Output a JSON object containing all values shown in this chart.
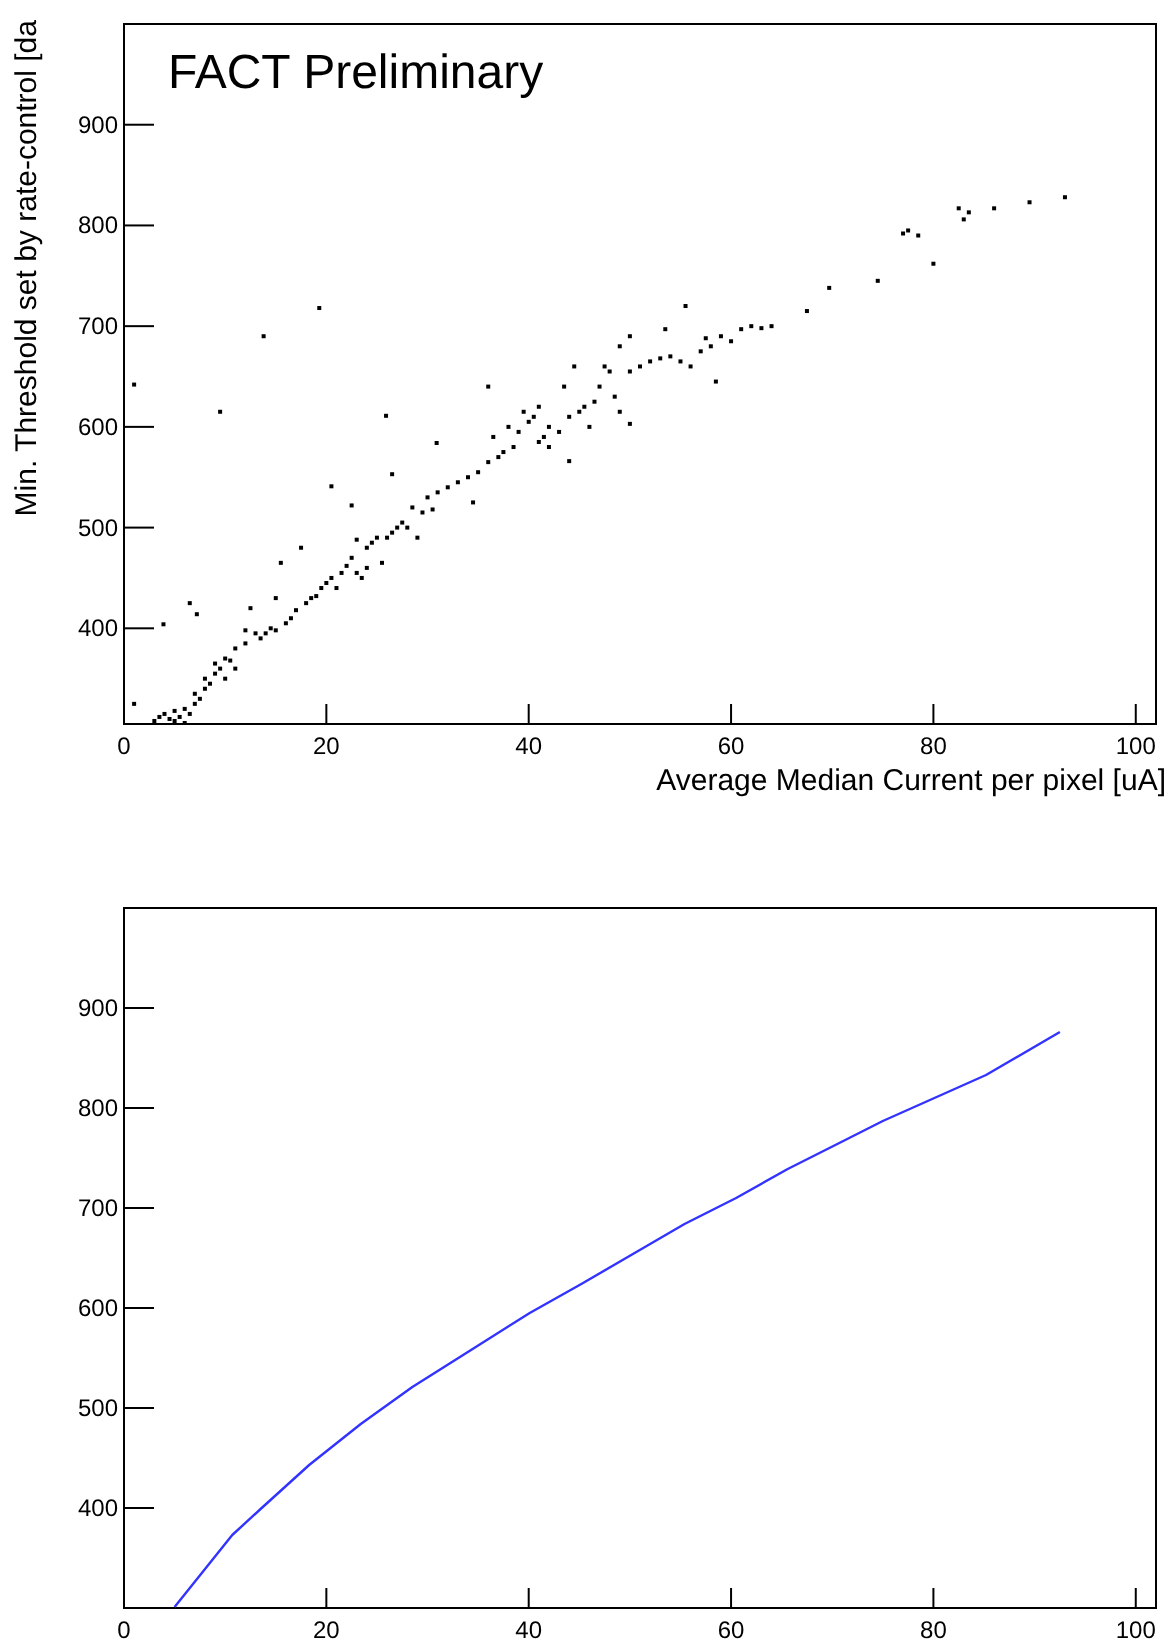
{
  "chart_data": [
    {
      "type": "scatter",
      "title": "FACT Preliminary",
      "xlabel": "Average Median Current per pixel [uA]",
      "ylabel": "Min. Threshold set by rate-control [da",
      "xlim": [
        0,
        102
      ],
      "ylim": [
        305,
        1000
      ],
      "xticks": [
        0,
        20,
        40,
        60,
        80,
        100
      ],
      "yticks": [
        400,
        500,
        600,
        700,
        800,
        900
      ],
      "marker": "square",
      "series": [
        {
          "color": "#000000",
          "x": [
            1,
            1,
            3.9,
            6.5,
            7.2,
            9.5,
            13.8,
            19.3,
            20.5,
            22.5,
            25.9,
            26.5,
            30.9,
            3,
            3.5,
            4,
            4.5,
            5,
            5,
            5.5,
            6,
            6,
            6.5,
            7,
            7,
            7.5,
            8,
            8,
            8.5,
            9,
            9,
            9.5,
            10,
            10,
            10.5,
            11,
            11,
            12,
            12,
            12.5,
            13,
            13.5,
            14,
            14.5,
            15,
            15,
            15.5,
            16,
            16.5,
            17,
            17.5,
            18,
            18.5,
            19,
            19.5,
            20,
            20.5,
            21,
            21.5,
            22,
            22.5,
            23,
            23,
            23.5,
            24,
            24,
            24.5,
            25,
            25.5,
            26,
            26.5,
            27,
            27.5,
            28,
            28.5,
            29,
            29.5,
            30,
            30.5,
            31,
            32,
            33,
            34,
            34.5,
            35,
            36,
            36,
            36.5,
            37,
            37.5,
            38,
            38.5,
            39,
            39.5,
            40,
            40.5,
            41,
            41,
            41.5,
            42,
            42,
            43,
            43.5,
            44,
            44,
            44.5,
            45,
            45.5,
            46,
            46.5,
            47,
            47.5,
            48,
            48.5,
            49,
            49,
            50,
            50,
            50,
            51,
            52,
            53,
            53.5,
            54,
            55,
            55.5,
            56,
            57,
            57.5,
            58,
            58.5,
            59,
            60,
            61,
            62,
            63,
            64,
            67.5,
            69.7,
            74.5,
            77,
            77.5,
            78.5,
            80,
            82.5,
            83,
            83.5,
            86,
            89.5,
            93
          ],
          "values": [
            642,
            325,
            404,
            425,
            414,
            615,
            690,
            718,
            541,
            522,
            611,
            553,
            584,
            308,
            312,
            315,
            310,
            308,
            318,
            312,
            306,
            320,
            315,
            325,
            335,
            330,
            340,
            350,
            345,
            355,
            365,
            360,
            370,
            350,
            368,
            380,
            360,
            385,
            398,
            420,
            395,
            390,
            395,
            400,
            398,
            430,
            465,
            405,
            410,
            418,
            480,
            425,
            430,
            432,
            440,
            445,
            450,
            440,
            455,
            462,
            470,
            488,
            455,
            450,
            480,
            460,
            485,
            490,
            465,
            490,
            495,
            500,
            505,
            500,
            520,
            490,
            515,
            530,
            518,
            535,
            540,
            545,
            550,
            525,
            555,
            565,
            640,
            590,
            570,
            575,
            600,
            580,
            595,
            615,
            605,
            610,
            620,
            585,
            590,
            600,
            580,
            595,
            640,
            610,
            566,
            660,
            615,
            620,
            600,
            625,
            640,
            660,
            655,
            630,
            615,
            680,
            603,
            655,
            690,
            660,
            665,
            668,
            697,
            670,
            665,
            720,
            660,
            675,
            688,
            680,
            645,
            690,
            685,
            697,
            700,
            698,
            700,
            715,
            738,
            745,
            792,
            795,
            790,
            762,
            817,
            806,
            813,
            817,
            823,
            828
          ]
        }
      ]
    },
    {
      "type": "line",
      "xlim": [
        0,
        102
      ],
      "ylim": [
        300,
        1000
      ],
      "xticks": [
        0,
        20,
        40,
        60,
        80,
        100
      ],
      "yticks": [
        400,
        500,
        600,
        700,
        800,
        900
      ],
      "marker": "none",
      "line_style": "solid",
      "series": [
        {
          "color": "#3333ff",
          "x": [
            5,
            10.7,
            13.5,
            18.3,
            23.4,
            28.5,
            34.3,
            40.1,
            45.2,
            50.3,
            55.4,
            60.5,
            65.6,
            70.7,
            75,
            80.1,
            85.2,
            92.5
          ],
          "values": [
            301,
            373,
            399,
            443,
            484,
            521,
            558,
            595,
            624,
            654,
            684,
            710,
            739,
            765,
            787,
            810,
            833,
            876
          ]
        }
      ]
    }
  ]
}
